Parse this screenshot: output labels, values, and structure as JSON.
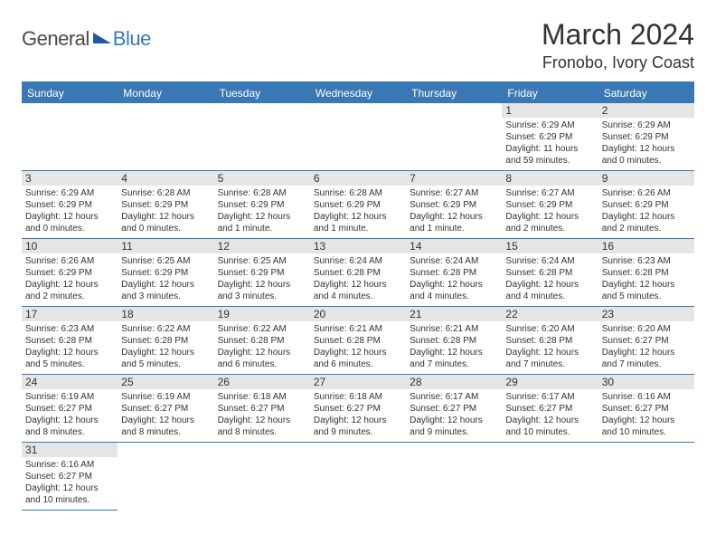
{
  "logo": {
    "general": "General",
    "blue": "Blue"
  },
  "header": {
    "title": "March 2024",
    "location": "Fronobo, Ivory Coast"
  },
  "day_headers": [
    "Sunday",
    "Monday",
    "Tuesday",
    "Wednesday",
    "Thursday",
    "Friday",
    "Saturday"
  ],
  "colors": {
    "brand_blue": "#3a78b5",
    "text": "#333333",
    "daynum_bg": "#e5e5e5",
    "page_bg": "#ffffff"
  },
  "days": [
    null,
    null,
    null,
    null,
    null,
    {
      "n": "1",
      "sunrise": "Sunrise: 6:29 AM",
      "sunset": "Sunset: 6:29 PM",
      "daylight": "Daylight: 11 hours and 59 minutes."
    },
    {
      "n": "2",
      "sunrise": "Sunrise: 6:29 AM",
      "sunset": "Sunset: 6:29 PM",
      "daylight": "Daylight: 12 hours and 0 minutes."
    },
    {
      "n": "3",
      "sunrise": "Sunrise: 6:29 AM",
      "sunset": "Sunset: 6:29 PM",
      "daylight": "Daylight: 12 hours and 0 minutes."
    },
    {
      "n": "4",
      "sunrise": "Sunrise: 6:28 AM",
      "sunset": "Sunset: 6:29 PM",
      "daylight": "Daylight: 12 hours and 0 minutes."
    },
    {
      "n": "5",
      "sunrise": "Sunrise: 6:28 AM",
      "sunset": "Sunset: 6:29 PM",
      "daylight": "Daylight: 12 hours and 1 minute."
    },
    {
      "n": "6",
      "sunrise": "Sunrise: 6:28 AM",
      "sunset": "Sunset: 6:29 PM",
      "daylight": "Daylight: 12 hours and 1 minute."
    },
    {
      "n": "7",
      "sunrise": "Sunrise: 6:27 AM",
      "sunset": "Sunset: 6:29 PM",
      "daylight": "Daylight: 12 hours and 1 minute."
    },
    {
      "n": "8",
      "sunrise": "Sunrise: 6:27 AM",
      "sunset": "Sunset: 6:29 PM",
      "daylight": "Daylight: 12 hours and 2 minutes."
    },
    {
      "n": "9",
      "sunrise": "Sunrise: 6:26 AM",
      "sunset": "Sunset: 6:29 PM",
      "daylight": "Daylight: 12 hours and 2 minutes."
    },
    {
      "n": "10",
      "sunrise": "Sunrise: 6:26 AM",
      "sunset": "Sunset: 6:29 PM",
      "daylight": "Daylight: 12 hours and 2 minutes."
    },
    {
      "n": "11",
      "sunrise": "Sunrise: 6:25 AM",
      "sunset": "Sunset: 6:29 PM",
      "daylight": "Daylight: 12 hours and 3 minutes."
    },
    {
      "n": "12",
      "sunrise": "Sunrise: 6:25 AM",
      "sunset": "Sunset: 6:29 PM",
      "daylight": "Daylight: 12 hours and 3 minutes."
    },
    {
      "n": "13",
      "sunrise": "Sunrise: 6:24 AM",
      "sunset": "Sunset: 6:28 PM",
      "daylight": "Daylight: 12 hours and 4 minutes."
    },
    {
      "n": "14",
      "sunrise": "Sunrise: 6:24 AM",
      "sunset": "Sunset: 6:28 PM",
      "daylight": "Daylight: 12 hours and 4 minutes."
    },
    {
      "n": "15",
      "sunrise": "Sunrise: 6:24 AM",
      "sunset": "Sunset: 6:28 PM",
      "daylight": "Daylight: 12 hours and 4 minutes."
    },
    {
      "n": "16",
      "sunrise": "Sunrise: 6:23 AM",
      "sunset": "Sunset: 6:28 PM",
      "daylight": "Daylight: 12 hours and 5 minutes."
    },
    {
      "n": "17",
      "sunrise": "Sunrise: 6:23 AM",
      "sunset": "Sunset: 6:28 PM",
      "daylight": "Daylight: 12 hours and 5 minutes."
    },
    {
      "n": "18",
      "sunrise": "Sunrise: 6:22 AM",
      "sunset": "Sunset: 6:28 PM",
      "daylight": "Daylight: 12 hours and 5 minutes."
    },
    {
      "n": "19",
      "sunrise": "Sunrise: 6:22 AM",
      "sunset": "Sunset: 6:28 PM",
      "daylight": "Daylight: 12 hours and 6 minutes."
    },
    {
      "n": "20",
      "sunrise": "Sunrise: 6:21 AM",
      "sunset": "Sunset: 6:28 PM",
      "daylight": "Daylight: 12 hours and 6 minutes."
    },
    {
      "n": "21",
      "sunrise": "Sunrise: 6:21 AM",
      "sunset": "Sunset: 6:28 PM",
      "daylight": "Daylight: 12 hours and 7 minutes."
    },
    {
      "n": "22",
      "sunrise": "Sunrise: 6:20 AM",
      "sunset": "Sunset: 6:28 PM",
      "daylight": "Daylight: 12 hours and 7 minutes."
    },
    {
      "n": "23",
      "sunrise": "Sunrise: 6:20 AM",
      "sunset": "Sunset: 6:27 PM",
      "daylight": "Daylight: 12 hours and 7 minutes."
    },
    {
      "n": "24",
      "sunrise": "Sunrise: 6:19 AM",
      "sunset": "Sunset: 6:27 PM",
      "daylight": "Daylight: 12 hours and 8 minutes."
    },
    {
      "n": "25",
      "sunrise": "Sunrise: 6:19 AM",
      "sunset": "Sunset: 6:27 PM",
      "daylight": "Daylight: 12 hours and 8 minutes."
    },
    {
      "n": "26",
      "sunrise": "Sunrise: 6:18 AM",
      "sunset": "Sunset: 6:27 PM",
      "daylight": "Daylight: 12 hours and 8 minutes."
    },
    {
      "n": "27",
      "sunrise": "Sunrise: 6:18 AM",
      "sunset": "Sunset: 6:27 PM",
      "daylight": "Daylight: 12 hours and 9 minutes."
    },
    {
      "n": "28",
      "sunrise": "Sunrise: 6:17 AM",
      "sunset": "Sunset: 6:27 PM",
      "daylight": "Daylight: 12 hours and 9 minutes."
    },
    {
      "n": "29",
      "sunrise": "Sunrise: 6:17 AM",
      "sunset": "Sunset: 6:27 PM",
      "daylight": "Daylight: 12 hours and 10 minutes."
    },
    {
      "n": "30",
      "sunrise": "Sunrise: 6:16 AM",
      "sunset": "Sunset: 6:27 PM",
      "daylight": "Daylight: 12 hours and 10 minutes."
    },
    {
      "n": "31",
      "sunrise": "Sunrise: 6:16 AM",
      "sunset": "Sunset: 6:27 PM",
      "daylight": "Daylight: 12 hours and 10 minutes."
    }
  ]
}
